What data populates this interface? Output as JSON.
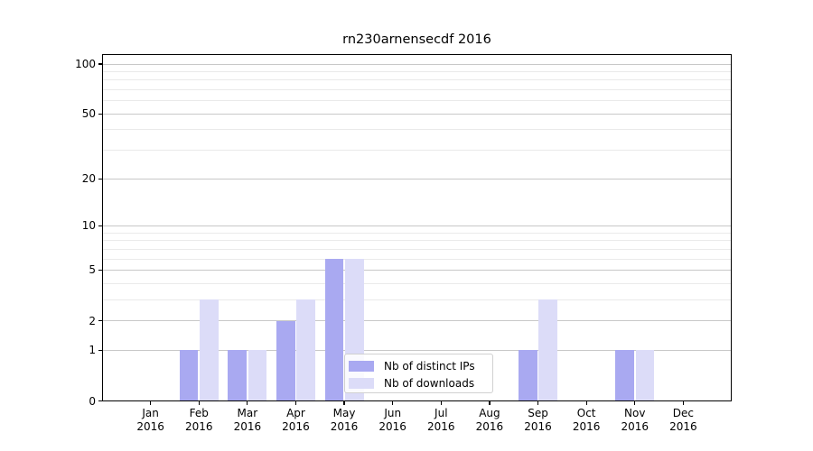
{
  "title": "rn230arnensecdf 2016",
  "colors": {
    "axis": "#000000",
    "grid_major": "#c8c8c8",
    "grid_minor": "#eaeaea",
    "background": "#ffffff",
    "legend_border": "#d0d0d0",
    "series_distinct_ips": "#a9a9f1",
    "series_downloads": "#dcdcf8"
  },
  "chart_data": {
    "type": "bar",
    "title": "rn230arnensecdf 2016",
    "categories": [
      "Jan 2016",
      "Feb 2016",
      "Mar 2016",
      "Apr 2016",
      "May 2016",
      "Jun 2016",
      "Jul 2016",
      "Aug 2016",
      "Sep 2016",
      "Oct 2016",
      "Nov 2016",
      "Dec 2016"
    ],
    "series": [
      {
        "name": "Nb of distinct IPs",
        "color": "#a9a9f1",
        "values": [
          0,
          1,
          1,
          2,
          6,
          0,
          0,
          0,
          1,
          0,
          1,
          0
        ]
      },
      {
        "name": "Nb of downloads",
        "color": "#dcdcf8",
        "values": [
          0,
          3,
          1,
          3,
          6,
          0,
          0,
          0,
          3,
          0,
          1,
          0
        ]
      }
    ],
    "xlabel": "",
    "ylabel": "",
    "yscale": "log1p",
    "y_ticks": [
      0,
      1,
      2,
      5,
      10,
      20,
      50,
      100
    ],
    "y_minor_ticks": [
      3,
      4,
      6,
      7,
      8,
      9,
      30,
      40,
      60,
      70,
      80,
      90
    ],
    "ylim": [
      0,
      115
    ],
    "grid": true,
    "legend_position": "lower center"
  }
}
